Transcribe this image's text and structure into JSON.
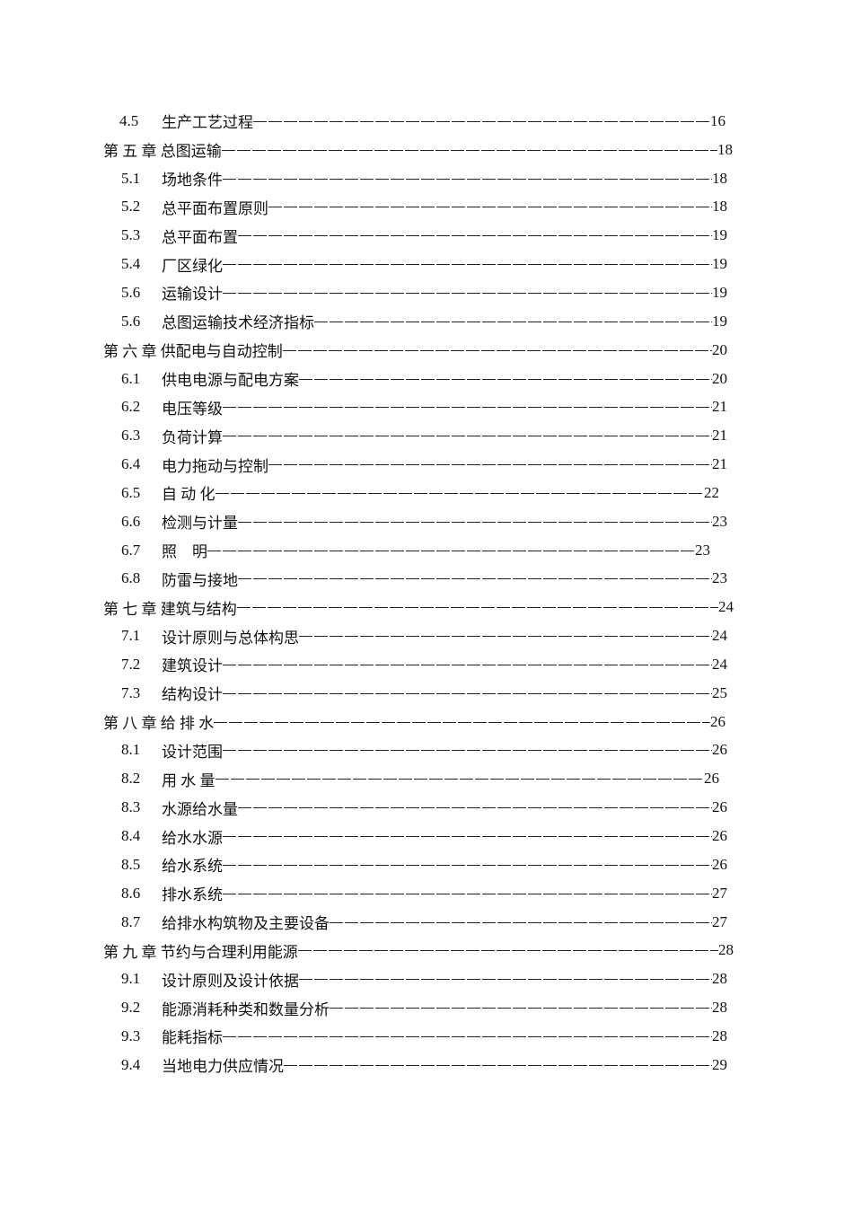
{
  "toc": [
    {
      "num": "4.5",
      "title": "生产工艺过程",
      "page": "16",
      "level": "section"
    },
    {
      "num": "",
      "title": "第 五 章 总图运输",
      "page": "18",
      "level": "chapter"
    },
    {
      "num": "5.1",
      "title": "场地条件",
      "page": "18",
      "level": "section"
    },
    {
      "num": "5.2",
      "title": "总平面布置原则",
      "page": "18",
      "level": "section"
    },
    {
      "num": "5.3",
      "title": "总平面布置",
      "page": "19",
      "level": "section"
    },
    {
      "num": "5.4",
      "title": "厂区绿化",
      "page": "19",
      "level": "section"
    },
    {
      "num": "5.6",
      "title": "运输设计",
      "page": "19",
      "level": "section"
    },
    {
      "num": "5.6",
      "title": "总图运输技术经济指标",
      "page": "19",
      "level": "section"
    },
    {
      "num": "",
      "title": "第 六 章 供配电与自动控制",
      "page": "20",
      "level": "chapter"
    },
    {
      "num": "6.1",
      "title": "供电电源与配电方案",
      "page": "20",
      "level": "section"
    },
    {
      "num": "6.2",
      "title": "电压等级",
      "page": "21",
      "level": "section"
    },
    {
      "num": "6.3",
      "title": "负荷计算",
      "page": "21",
      "level": "section"
    },
    {
      "num": "6.4",
      "title": "电力拖动与控制",
      "page": "21",
      "level": "section"
    },
    {
      "num": "6.5",
      "title": "自 动 化",
      "page": "22",
      "level": "section"
    },
    {
      "num": "6.6",
      "title": "检测与计量",
      "page": "23",
      "level": "section"
    },
    {
      "num": "6.7",
      "title": "照    明",
      "page": "23",
      "level": "section"
    },
    {
      "num": "6.8",
      "title": "防雷与接地",
      "page": "23",
      "level": "section"
    },
    {
      "num": "",
      "title": "第 七 章 建筑与结构",
      "page": "24",
      "level": "chapter"
    },
    {
      "num": "7.1",
      "title": "设计原则与总体构思",
      "page": "24",
      "level": "section"
    },
    {
      "num": "7.2",
      "title": "建筑设计",
      "page": "24",
      "level": "section"
    },
    {
      "num": "7.3",
      "title": "结构设计",
      "page": "25",
      "level": "section"
    },
    {
      "num": "",
      "title": "第 八 章 给 排 水",
      "page": "26",
      "level": "chapter"
    },
    {
      "num": "8.1",
      "title": "设计范围",
      "page": "26",
      "level": "section"
    },
    {
      "num": "8.2",
      "title": "用 水 量",
      "page": "26",
      "level": "section"
    },
    {
      "num": "8.3",
      "title": "水源给水量",
      "page": "26",
      "level": "section"
    },
    {
      "num": "8.4",
      "title": "给水水源",
      "page": "26",
      "level": "section"
    },
    {
      "num": "8.5",
      "title": "给水系统",
      "page": "26",
      "level": "section"
    },
    {
      "num": "8.6",
      "title": "排水系统",
      "page": "27",
      "level": "section"
    },
    {
      "num": "8.7",
      "title": "给排水构筑物及主要设备",
      "page": "27",
      "level": "section"
    },
    {
      "num": "",
      "title": "第 九 章 节约与合理利用能源",
      "page": "28",
      "level": "chapter"
    },
    {
      "num": "9.1",
      "title": "设计原则及设计依据",
      "page": "28",
      "level": "section"
    },
    {
      "num": "9.2",
      "title": "能源消耗种类和数量分析",
      "page": "28",
      "level": "section"
    },
    {
      "num": "9.3",
      "title": "能耗指标",
      "page": "28",
      "level": "section"
    },
    {
      "num": "9.4",
      "title": "当地电力供应情况",
      "page": "29",
      "level": "section"
    }
  ]
}
